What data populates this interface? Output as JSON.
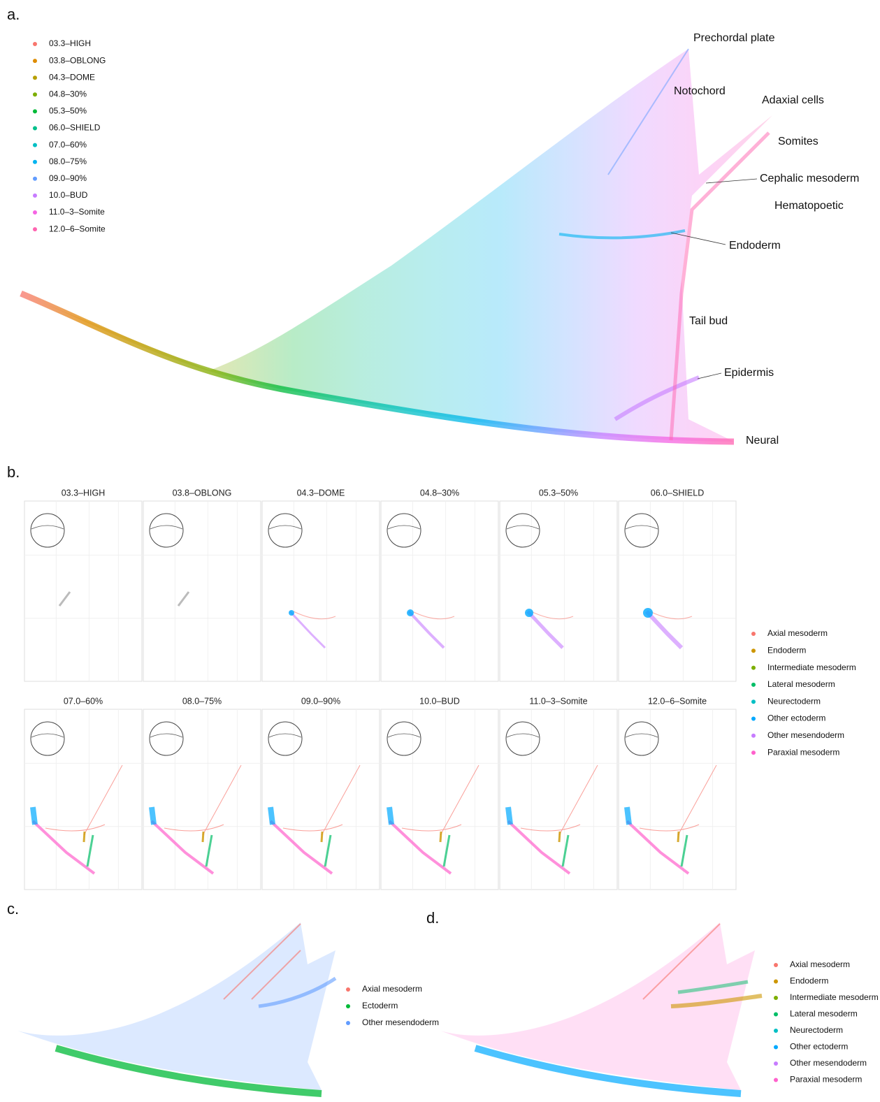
{
  "panel_a": {
    "label": "a.",
    "legend": [
      {
        "name": "03.3–HIGH",
        "color": "#F8766D"
      },
      {
        "name": "03.8–OBLONG",
        "color": "#DE8C00"
      },
      {
        "name": "04.3–DOME",
        "color": "#B79F00"
      },
      {
        "name": "04.8–30%",
        "color": "#7CAE00"
      },
      {
        "name": "05.3–50%",
        "color": "#00BA38"
      },
      {
        "name": "06.0–SHIELD",
        "color": "#00C08B"
      },
      {
        "name": "07.0–60%",
        "color": "#00BFC4"
      },
      {
        "name": "08.0–75%",
        "color": "#00B4F0"
      },
      {
        "name": "09.0–90%",
        "color": "#619CFF"
      },
      {
        "name": "10.0–BUD",
        "color": "#C77CFF"
      },
      {
        "name": "11.0–3–Somite",
        "color": "#F564E3"
      },
      {
        "name": "12.0–6–Somite",
        "color": "#FF64B0"
      }
    ],
    "annotations": [
      "Prechordal plate",
      "Notochord",
      "Adaxial cells",
      "Somites",
      "Cephalic mesoderm",
      "Hematopoetic",
      "Endoderm",
      "Tail bud",
      "Epidermis",
      "Neural"
    ]
  },
  "panel_b": {
    "label": "b.",
    "stages": [
      "03.3–HIGH",
      "03.8–OBLONG",
      "04.3–DOME",
      "04.8–30%",
      "05.3–50%",
      "06.0–SHIELD",
      "07.0–60%",
      "08.0–75%",
      "09.0–90%",
      "10.0–BUD",
      "11.0–3–Somite",
      "12.0–6–Somite"
    ],
    "legend": [
      {
        "name": "Axial mesoderm",
        "color": "#F8766D"
      },
      {
        "name": "Endoderm",
        "color": "#CD9600"
      },
      {
        "name": "Intermediate mesoderm",
        "color": "#7CAE00"
      },
      {
        "name": "Lateral mesoderm",
        "color": "#00BE67"
      },
      {
        "name": "Neurectoderm",
        "color": "#00BFC4"
      },
      {
        "name": "Other ectoderm",
        "color": "#00A9FF"
      },
      {
        "name": "Other mesendoderm",
        "color": "#C77CFF"
      },
      {
        "name": "Paraxial mesoderm",
        "color": "#FF61CC"
      }
    ]
  },
  "panel_c": {
    "label": "c.",
    "legend": [
      {
        "name": "Axial mesoderm",
        "color": "#F8766D"
      },
      {
        "name": "Ectoderm",
        "color": "#00BA38"
      },
      {
        "name": "Other mesendoderm",
        "color": "#619CFF"
      }
    ]
  },
  "panel_d": {
    "label": "d.",
    "legend": [
      {
        "name": "Axial mesoderm",
        "color": "#F8766D"
      },
      {
        "name": "Endoderm",
        "color": "#CD9600"
      },
      {
        "name": "Intermediate mesoderm",
        "color": "#7CAE00"
      },
      {
        "name": "Lateral mesoderm",
        "color": "#00BE67"
      },
      {
        "name": "Neurectoderm",
        "color": "#00BFC4"
      },
      {
        "name": "Other ectoderm",
        "color": "#00A9FF"
      },
      {
        "name": "Other mesendoderm",
        "color": "#C77CFF"
      },
      {
        "name": "Paraxial mesoderm",
        "color": "#FF61CC"
      }
    ]
  }
}
